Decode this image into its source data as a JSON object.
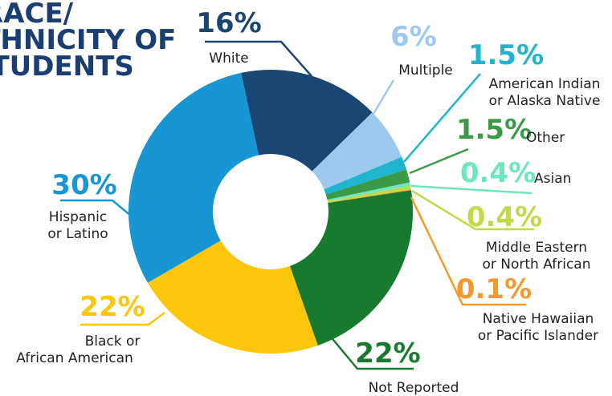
{
  "chart_data": {
    "type": "donut",
    "title_lines": [
      "RACE/",
      "ETHNICITY OF",
      "STUDENTS"
    ],
    "categories": [
      [
        "White"
      ],
      [
        "Multiple"
      ],
      [
        "American Indian",
        "or Alaska Native"
      ],
      [
        "Other"
      ],
      [
        "Asian"
      ],
      [
        "Middle Eastern",
        "or North African"
      ],
      [
        "Native Hawaiian",
        "or Pacific Islander"
      ],
      [
        "Not Reported"
      ],
      [
        "Black or",
        "African American"
      ],
      [
        "Hispanic",
        "or Latino"
      ]
    ],
    "values": [
      16,
      6,
      1.5,
      1.5,
      0.4,
      0.4,
      0.1,
      22,
      22,
      30
    ],
    "value_labels": [
      "16%",
      "6%",
      "1.5%",
      "1.5%",
      "0.4%",
      "0.4%",
      "0.1%",
      "22%",
      "22%",
      "30%"
    ],
    "colors": [
      "#1a4674",
      "#9ec9ee",
      "#1fb5cf",
      "#3a9a48",
      "#6ee6c0",
      "#c4d94a",
      "#f39a2a",
      "#177a2e",
      "#fcc60a",
      "#1895d3"
    ]
  }
}
